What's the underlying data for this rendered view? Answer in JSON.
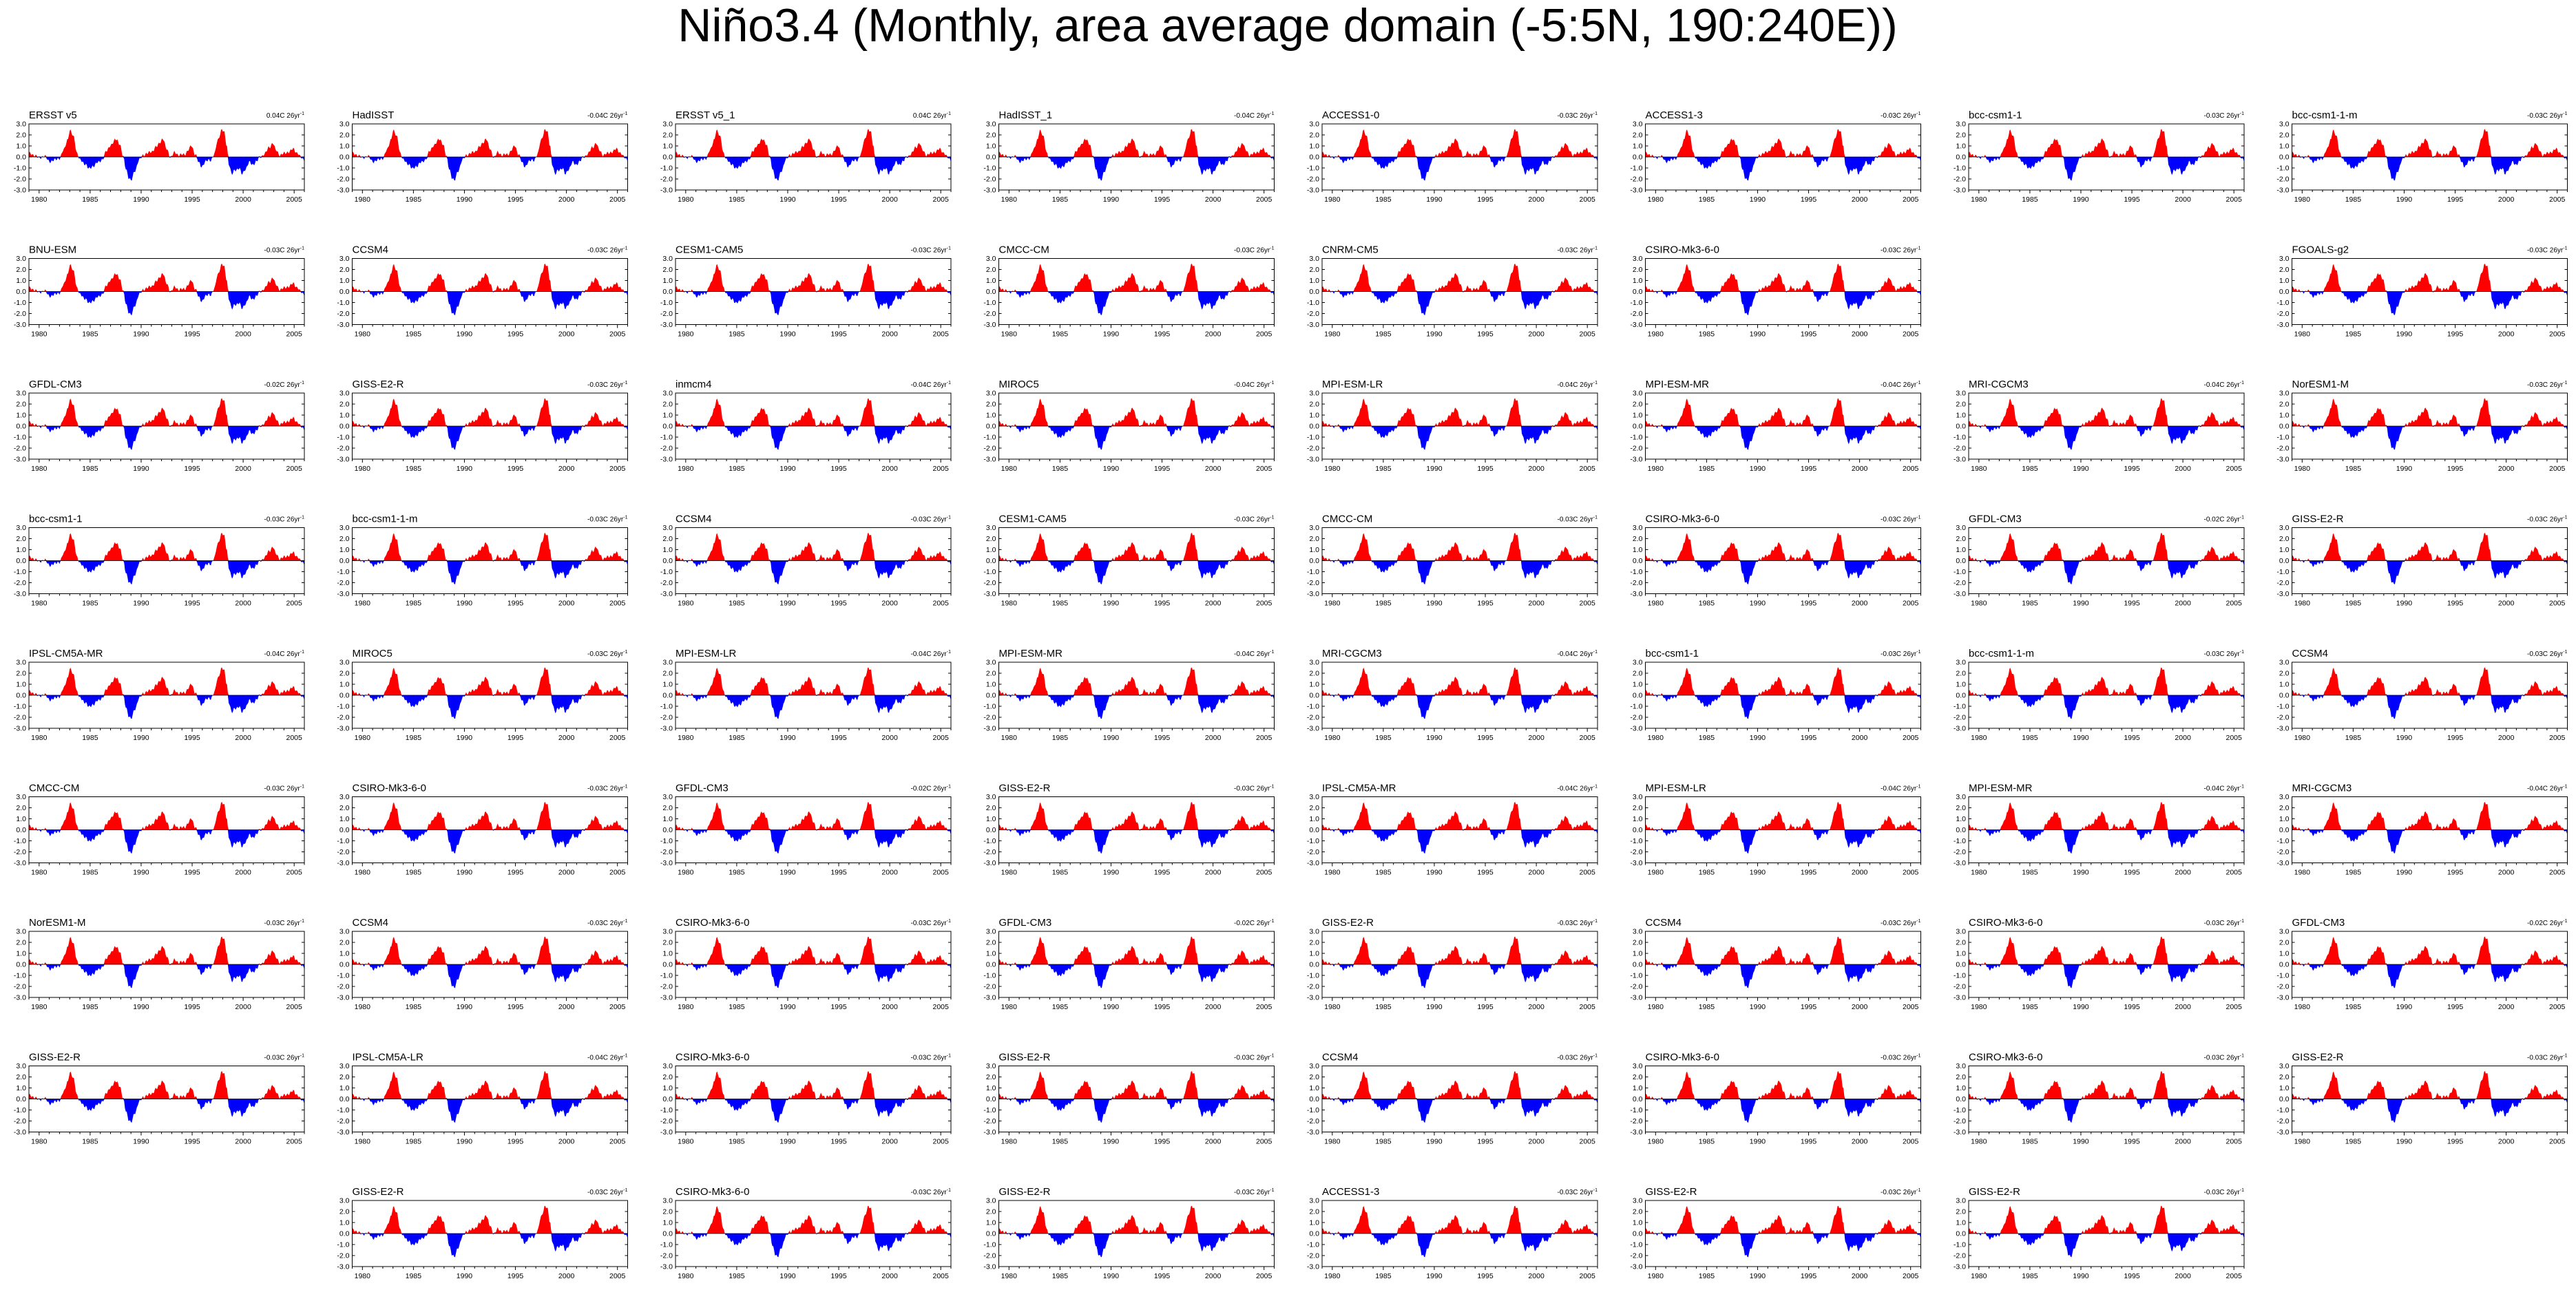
{
  "figure": {
    "title": "Niño3.4 (Monthly, area average domain (-5:5N, 190:240E))"
  },
  "colors": {
    "positive": "#ff0000",
    "negative": "#0000ff",
    "axis": "#000000",
    "background": "#ffffff"
  },
  "chart_data": {
    "type": "area",
    "layout": "panel grid, 9 rows x 8 columns",
    "units": "degC anomaly",
    "trend_suffix": "26yr",
    "x": {
      "min": 1979,
      "max": 2006,
      "ticks": [
        1980,
        1985,
        1990,
        1995,
        2000,
        2005
      ]
    },
    "y": {
      "min": -3,
      "max": 3,
      "ticks": [
        "3.0",
        "2.0",
        "1.0",
        "0.0",
        "-1.0",
        "-2.0",
        "-3.0"
      ]
    },
    "series_template": {
      "description": "monthly Niño3.4 SST anomaly, filled red above 0 and blue below 0",
      "anchors": [
        [
          1979.0,
          0.3
        ],
        [
          1979.5,
          0.2
        ],
        [
          1980.0,
          -0.1
        ],
        [
          1980.5,
          0.1
        ],
        [
          1981.0,
          -0.4
        ],
        [
          1981.5,
          -0.3
        ],
        [
          1982.0,
          -0.1
        ],
        [
          1982.4,
          0.6
        ],
        [
          1982.8,
          1.6
        ],
        [
          1983.0,
          2.4
        ],
        [
          1983.4,
          1.8
        ],
        [
          1983.7,
          0.4
        ],
        [
          1984.0,
          -0.3
        ],
        [
          1984.5,
          -0.6
        ],
        [
          1984.9,
          -1.1
        ],
        [
          1985.3,
          -0.8
        ],
        [
          1985.8,
          -0.5
        ],
        [
          1986.2,
          -0.2
        ],
        [
          1986.6,
          0.5
        ],
        [
          1987.0,
          1.1
        ],
        [
          1987.6,
          1.6
        ],
        [
          1987.9,
          1.2
        ],
        [
          1988.2,
          0.1
        ],
        [
          1988.5,
          -1.0
        ],
        [
          1988.8,
          -1.9
        ],
        [
          1989.0,
          -2.2
        ],
        [
          1989.4,
          -1.2
        ],
        [
          1989.8,
          -0.3
        ],
        [
          1990.2,
          0.2
        ],
        [
          1990.6,
          0.3
        ],
        [
          1991.0,
          0.5
        ],
        [
          1991.5,
          0.9
        ],
        [
          1991.9,
          1.4
        ],
        [
          1992.1,
          1.7
        ],
        [
          1992.5,
          0.7
        ],
        [
          1992.9,
          0.0
        ],
        [
          1993.3,
          0.4
        ],
        [
          1993.7,
          0.2
        ],
        [
          1994.2,
          0.2
        ],
        [
          1994.7,
          0.7
        ],
        [
          1994.9,
          1.0
        ],
        [
          1995.3,
          0.3
        ],
        [
          1995.7,
          -0.6
        ],
        [
          1995.9,
          -0.9
        ],
        [
          1996.3,
          -0.4
        ],
        [
          1996.8,
          -0.3
        ],
        [
          1997.2,
          0.3
        ],
        [
          1997.5,
          1.5
        ],
        [
          1997.9,
          2.5
        ],
        [
          1998.1,
          2.3
        ],
        [
          1998.4,
          1.0
        ],
        [
          1998.6,
          -0.6
        ],
        [
          1998.9,
          -1.6
        ],
        [
          1999.2,
          -1.2
        ],
        [
          1999.6,
          -1.0
        ],
        [
          1999.9,
          -1.6
        ],
        [
          2000.2,
          -1.1
        ],
        [
          2000.6,
          -0.5
        ],
        [
          2000.9,
          -0.7
        ],
        [
          2001.3,
          -0.4
        ],
        [
          2001.7,
          0.0
        ],
        [
          2002.1,
          0.3
        ],
        [
          2002.6,
          0.9
        ],
        [
          2002.9,
          1.3
        ],
        [
          2003.2,
          0.6
        ],
        [
          2003.6,
          0.2
        ],
        [
          2004.0,
          0.3
        ],
        [
          2004.5,
          0.5
        ],
        [
          2004.9,
          0.7
        ],
        [
          2005.3,
          0.4
        ],
        [
          2005.7,
          -0.1
        ],
        [
          2006.0,
          -0.3
        ]
      ]
    },
    "panels": [
      {
        "row": 0,
        "col": 0,
        "name": "ERSST v5",
        "trend": "0.04C"
      },
      {
        "row": 0,
        "col": 1,
        "name": "HadISST",
        "trend": "-0.04C"
      },
      {
        "row": 0,
        "col": 2,
        "name": "ERSST v5_1",
        "trend": "0.04C"
      },
      {
        "row": 0,
        "col": 3,
        "name": "HadISST_1",
        "trend": "-0.04C"
      },
      {
        "row": 0,
        "col": 4,
        "name": "ACCESS1-0",
        "trend": "-0.03C"
      },
      {
        "row": 0,
        "col": 5,
        "name": "ACCESS1-3",
        "trend": "-0.03C"
      },
      {
        "row": 0,
        "col": 6,
        "name": "bcc-csm1-1",
        "trend": "-0.03C"
      },
      {
        "row": 0,
        "col": 7,
        "name": "bcc-csm1-1-m",
        "trend": "-0.03C"
      },
      {
        "row": 1,
        "col": 0,
        "name": "BNU-ESM",
        "trend": "-0.03C"
      },
      {
        "row": 1,
        "col": 1,
        "name": "CCSM4",
        "trend": "-0.03C"
      },
      {
        "row": 1,
        "col": 2,
        "name": "CESM1-CAM5",
        "trend": "-0.03C"
      },
      {
        "row": 1,
        "col": 3,
        "name": "CMCC-CM",
        "trend": "-0.03C"
      },
      {
        "row": 1,
        "col": 4,
        "name": "CNRM-CM5",
        "trend": "-0.03C"
      },
      {
        "row": 1,
        "col": 5,
        "name": "CSIRO-Mk3-6-0",
        "trend": "-0.03C"
      },
      {
        "row": 1,
        "col": 7,
        "name": "FGOALS-g2",
        "trend": "-0.03C"
      },
      {
        "row": 2,
        "col": 0,
        "name": "GFDL-CM3",
        "trend": "-0.02C"
      },
      {
        "row": 2,
        "col": 1,
        "name": "GISS-E2-R",
        "trend": "-0.03C"
      },
      {
        "row": 2,
        "col": 2,
        "name": "inmcm4",
        "trend": "-0.04C"
      },
      {
        "row": 2,
        "col": 3,
        "name": "MIROC5",
        "trend": "-0.04C"
      },
      {
        "row": 2,
        "col": 4,
        "name": "MPI-ESM-LR",
        "trend": "-0.04C"
      },
      {
        "row": 2,
        "col": 5,
        "name": "MPI-ESM-MR",
        "trend": "-0.04C"
      },
      {
        "row": 2,
        "col": 6,
        "name": "MRI-CGCM3",
        "trend": "-0.04C"
      },
      {
        "row": 2,
        "col": 7,
        "name": "NorESM1-M",
        "trend": "-0.03C"
      },
      {
        "row": 3,
        "col": 0,
        "name": "bcc-csm1-1",
        "trend": "-0.03C"
      },
      {
        "row": 3,
        "col": 1,
        "name": "bcc-csm1-1-m",
        "trend": "-0.03C"
      },
      {
        "row": 3,
        "col": 2,
        "name": "CCSM4",
        "trend": "-0.03C"
      },
      {
        "row": 3,
        "col": 3,
        "name": "CESM1-CAM5",
        "trend": "-0.03C"
      },
      {
        "row": 3,
        "col": 4,
        "name": "CMCC-CM",
        "trend": "-0.03C"
      },
      {
        "row": 3,
        "col": 5,
        "name": "CSIRO-Mk3-6-0",
        "trend": "-0.03C"
      },
      {
        "row": 3,
        "col": 6,
        "name": "GFDL-CM3",
        "trend": "-0.02C"
      },
      {
        "row": 3,
        "col": 7,
        "name": "GISS-E2-R",
        "trend": "-0.03C"
      },
      {
        "row": 4,
        "col": 0,
        "name": "IPSL-CM5A-MR",
        "trend": "-0.04C"
      },
      {
        "row": 4,
        "col": 1,
        "name": "MIROC5",
        "trend": "-0.03C"
      },
      {
        "row": 4,
        "col": 2,
        "name": "MPI-ESM-LR",
        "trend": "-0.04C"
      },
      {
        "row": 4,
        "col": 3,
        "name": "MPI-ESM-MR",
        "trend": "-0.04C"
      },
      {
        "row": 4,
        "col": 4,
        "name": "MRI-CGCM3",
        "trend": "-0.04C"
      },
      {
        "row": 4,
        "col": 5,
        "name": "bcc-csm1-1",
        "trend": "-0.03C"
      },
      {
        "row": 4,
        "col": 6,
        "name": "bcc-csm1-1-m",
        "trend": "-0.03C"
      },
      {
        "row": 4,
        "col": 7,
        "name": "CCSM4",
        "trend": "-0.03C"
      },
      {
        "row": 5,
        "col": 0,
        "name": "CMCC-CM",
        "trend": "-0.03C"
      },
      {
        "row": 5,
        "col": 1,
        "name": "CSIRO-Mk3-6-0",
        "trend": "-0.03C"
      },
      {
        "row": 5,
        "col": 2,
        "name": "GFDL-CM3",
        "trend": "-0.02C"
      },
      {
        "row": 5,
        "col": 3,
        "name": "GISS-E2-R",
        "trend": "-0.03C"
      },
      {
        "row": 5,
        "col": 4,
        "name": "IPSL-CM5A-MR",
        "trend": "-0.04C"
      },
      {
        "row": 5,
        "col": 5,
        "name": "MPI-ESM-LR",
        "trend": "-0.04C"
      },
      {
        "row": 5,
        "col": 6,
        "name": "MPI-ESM-MR",
        "trend": "-0.04C"
      },
      {
        "row": 5,
        "col": 7,
        "name": "MRI-CGCM3",
        "trend": "-0.04C"
      },
      {
        "row": 6,
        "col": 0,
        "name": "NorESM1-M",
        "trend": "-0.03C"
      },
      {
        "row": 6,
        "col": 1,
        "name": "CCSM4",
        "trend": "-0.03C"
      },
      {
        "row": 6,
        "col": 2,
        "name": "CSIRO-Mk3-6-0",
        "trend": "-0.03C"
      },
      {
        "row": 6,
        "col": 3,
        "name": "GFDL-CM3",
        "trend": "-0.02C"
      },
      {
        "row": 6,
        "col": 4,
        "name": "GISS-E2-R",
        "trend": "-0.03C"
      },
      {
        "row": 6,
        "col": 5,
        "name": "CCSM4",
        "trend": "-0.03C"
      },
      {
        "row": 6,
        "col": 6,
        "name": "CSIRO-Mk3-6-0",
        "trend": "-0.03C"
      },
      {
        "row": 6,
        "col": 7,
        "name": "GFDL-CM3",
        "trend": "-0.02C"
      },
      {
        "row": 7,
        "col": 0,
        "name": "GISS-E2-R",
        "trend": "-0.03C"
      },
      {
        "row": 7,
        "col": 1,
        "name": "IPSL-CM5A-LR",
        "trend": "-0.04C"
      },
      {
        "row": 7,
        "col": 2,
        "name": "CSIRO-Mk3-6-0",
        "trend": "-0.03C"
      },
      {
        "row": 7,
        "col": 3,
        "name": "GISS-E2-R",
        "trend": "-0.03C"
      },
      {
        "row": 7,
        "col": 4,
        "name": "CCSM4",
        "trend": "-0.03C"
      },
      {
        "row": 7,
        "col": 5,
        "name": "CSIRO-Mk3-6-0",
        "trend": "-0.03C"
      },
      {
        "row": 7,
        "col": 6,
        "name": "CSIRO-Mk3-6-0",
        "trend": "-0.03C"
      },
      {
        "row": 7,
        "col": 7,
        "name": "GISS-E2-R",
        "trend": "-0.03C"
      },
      {
        "row": 8,
        "col": 1,
        "name": "GISS-E2-R",
        "trend": "-0.03C"
      },
      {
        "row": 8,
        "col": 2,
        "name": "CSIRO-Mk3-6-0",
        "trend": "-0.03C"
      },
      {
        "row": 8,
        "col": 3,
        "name": "GISS-E2-R",
        "trend": "-0.03C"
      },
      {
        "row": 8,
        "col": 4,
        "name": "ACCESS1-3",
        "trend": "-0.03C"
      },
      {
        "row": 8,
        "col": 5,
        "name": "GISS-E2-R",
        "trend": "-0.03C"
      },
      {
        "row": 8,
        "col": 6,
        "name": "GISS-E2-R",
        "trend": "-0.03C"
      }
    ]
  }
}
